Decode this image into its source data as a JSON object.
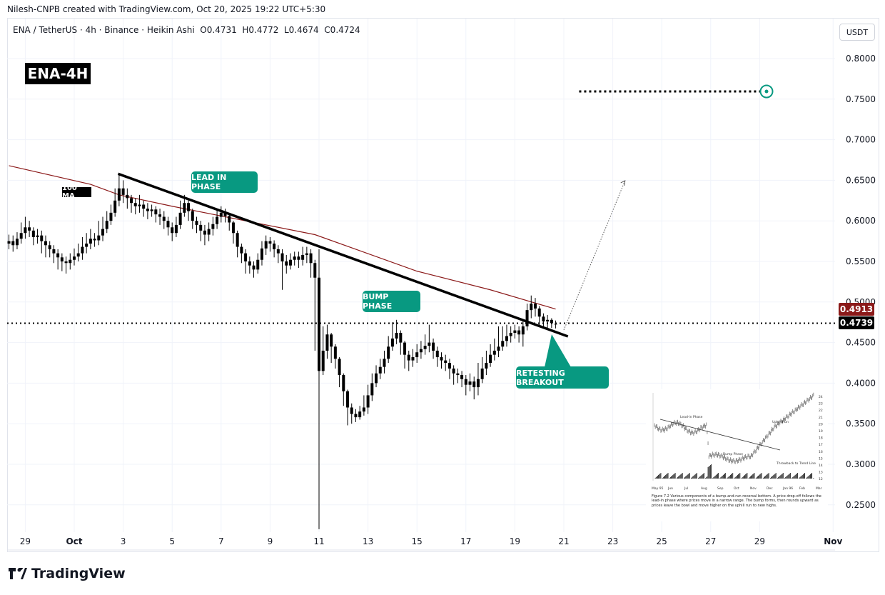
{
  "credit": "Nilesh-CNPB created with TradingView.com, Oct 20, 2025 19:22 UTC+5:30",
  "legend": {
    "symbol": "ENA / TetherUS",
    "interval": "4h",
    "exchange": "Binance",
    "chart_style": "Heikin Ashi",
    "open": "O0.4731",
    "high": "H0.4772",
    "low": "L0.4674",
    "close": "C0.4724",
    "text": "ENA / TetherUS · 4h · Binance · Heikin Ashi  O0.4731  H0.4772  L0.4674  C0.4724"
  },
  "currency_button": "USDT",
  "symbol_badge": "ENA-4H",
  "annotations": {
    "ma_label": "100 MA",
    "lead_in": "LEAD IN PHASE",
    "bump": "BUMP PHASE",
    "retest": "RETESTING BREAKOUT"
  },
  "price_labels": {
    "ma_value": "0.4913",
    "last_price": "0.4739"
  },
  "colors": {
    "accent": "#089981",
    "ma": "#8b1a1a",
    "candle": "#000000",
    "grid": "#f0f3fa"
  },
  "branding": "TradingView",
  "inset": {
    "caption": "Figure 7.2  Various components of a bump-and-run reversal bottom. A price drop-off follows the lead-in phase where prices move in a narrow range. The bump forms, then rounds upward as prices leave the bowl and move higher on the uphill run to new highs.",
    "labels": [
      "Lead-in Phase",
      "Bump Phase",
      "Uphill Run",
      "Throwback to Trend Line"
    ],
    "x_ticks": [
      "May 95",
      "Jun",
      "Jul",
      "Aug",
      "Sep",
      "Oct",
      "Nov",
      "Dec",
      "Jan 96",
      "Feb",
      "Mar"
    ],
    "y_ticks": [
      "24",
      "23",
      "22",
      "21",
      "20",
      "19",
      "18",
      "17",
      "16",
      "15",
      "14",
      "13",
      "12"
    ]
  },
  "chart_data": {
    "type": "candlestick",
    "title": "",
    "interval": "4h",
    "first_candle_time": "2025-09-28T08:00",
    "ylim": [
      0.22,
      0.82
    ],
    "y_ticks": [
      "0.8000",
      "0.7500",
      "0.7000",
      "0.6500",
      "0.6000",
      "0.5500",
      "0.5000",
      "0.4500",
      "0.4000",
      "0.3500",
      "0.3000",
      "0.2500"
    ],
    "x_ticks": [
      {
        "label": "29",
        "date": "2025-09-29"
      },
      {
        "label": "Oct",
        "date": "2025-10-01"
      },
      {
        "label": "3",
        "date": "2025-10-03"
      },
      {
        "label": "5",
        "date": "2025-10-05"
      },
      {
        "label": "7",
        "date": "2025-10-07"
      },
      {
        "label": "9",
        "date": "2025-10-09"
      },
      {
        "label": "11",
        "date": "2025-10-11"
      },
      {
        "label": "13",
        "date": "2025-10-13"
      },
      {
        "label": "15",
        "date": "2025-10-15"
      },
      {
        "label": "17",
        "date": "2025-10-17"
      },
      {
        "label": "19",
        "date": "2025-10-19"
      },
      {
        "label": "21",
        "date": "2025-10-21"
      },
      {
        "label": "23",
        "date": "2025-10-23"
      },
      {
        "label": "25",
        "date": "2025-10-25"
      },
      {
        "label": "27",
        "date": "2025-10-27"
      },
      {
        "label": "29",
        "date": "2025-10-29"
      },
      {
        "label": "Nov",
        "date": "2025-11-01"
      }
    ],
    "grid": true,
    "close": [
      0.575,
      0.57,
      0.578,
      0.585,
      0.592,
      0.588,
      0.58,
      0.582,
      0.575,
      0.57,
      0.565,
      0.56,
      0.555,
      0.55,
      0.548,
      0.552,
      0.556,
      0.56,
      0.568,
      0.572,
      0.578,
      0.576,
      0.582,
      0.59,
      0.6,
      0.61,
      0.625,
      0.64,
      0.632,
      0.628,
      0.622,
      0.618,
      0.62,
      0.615,
      0.612,
      0.614,
      0.608,
      0.605,
      0.6,
      0.592,
      0.585,
      0.595,
      0.61,
      0.622,
      0.612,
      0.6,
      0.595,
      0.588,
      0.583,
      0.59,
      0.596,
      0.605,
      0.61,
      0.606,
      0.598,
      0.585,
      0.568,
      0.56,
      0.55,
      0.545,
      0.54,
      0.552,
      0.566,
      0.575,
      0.572,
      0.565,
      0.56,
      0.55,
      0.545,
      0.552,
      0.556,
      0.552,
      0.558,
      0.56,
      0.548,
      0.53,
      0.415,
      0.44,
      0.46,
      0.445,
      0.43,
      0.41,
      0.39,
      0.37,
      0.362,
      0.358,
      0.365,
      0.37,
      0.385,
      0.4,
      0.412,
      0.42,
      0.43,
      0.445,
      0.455,
      0.462,
      0.45,
      0.435,
      0.428,
      0.432,
      0.438,
      0.442,
      0.446,
      0.45,
      0.44,
      0.432,
      0.428,
      0.425,
      0.418,
      0.412,
      0.41,
      0.405,
      0.398,
      0.402,
      0.395,
      0.405,
      0.418,
      0.425,
      0.435,
      0.44,
      0.445,
      0.452,
      0.458,
      0.462,
      0.465,
      0.46,
      0.47,
      0.49,
      0.498,
      0.492,
      0.482,
      0.476,
      0.478,
      0.474,
      0.4724
    ],
    "high": [
      0.583,
      0.582,
      0.586,
      0.598,
      0.605,
      0.6,
      0.592,
      0.59,
      0.588,
      0.582,
      0.575,
      0.57,
      0.565,
      0.56,
      0.556,
      0.56,
      0.566,
      0.572,
      0.58,
      0.585,
      0.59,
      0.585,
      0.6,
      0.605,
      0.612,
      0.62,
      0.64,
      0.657,
      0.65,
      0.64,
      0.632,
      0.628,
      0.632,
      0.625,
      0.622,
      0.62,
      0.618,
      0.615,
      0.612,
      0.605,
      0.598,
      0.605,
      0.625,
      0.632,
      0.625,
      0.615,
      0.605,
      0.6,
      0.595,
      0.598,
      0.605,
      0.615,
      0.618,
      0.615,
      0.608,
      0.6,
      0.588,
      0.572,
      0.565,
      0.556,
      0.55,
      0.56,
      0.575,
      0.582,
      0.58,
      0.576,
      0.57,
      0.565,
      0.558,
      0.56,
      0.562,
      0.562,
      0.568,
      0.568,
      0.565,
      0.552,
      0.565,
      0.47,
      0.472,
      0.462,
      0.448,
      0.432,
      0.412,
      0.392,
      0.375,
      0.368,
      0.372,
      0.385,
      0.398,
      0.412,
      0.422,
      0.43,
      0.44,
      0.458,
      0.475,
      0.478,
      0.465,
      0.452,
      0.44,
      0.442,
      0.448,
      0.452,
      0.46,
      0.472,
      0.455,
      0.445,
      0.438,
      0.435,
      0.43,
      0.422,
      0.418,
      0.415,
      0.41,
      0.412,
      0.408,
      0.425,
      0.432,
      0.44,
      0.448,
      0.455,
      0.47,
      0.47,
      0.472,
      0.47,
      0.472,
      0.47,
      0.478,
      0.498,
      0.508,
      0.505,
      0.495,
      0.486,
      0.484,
      0.48,
      0.4772
    ],
    "low": [
      0.565,
      0.562,
      0.565,
      0.572,
      0.578,
      0.58,
      0.57,
      0.572,
      0.56,
      0.555,
      0.555,
      0.548,
      0.54,
      0.538,
      0.535,
      0.54,
      0.545,
      0.55,
      0.552,
      0.56,
      0.565,
      0.568,
      0.57,
      0.575,
      0.585,
      0.595,
      0.605,
      0.618,
      0.622,
      0.615,
      0.61,
      0.608,
      0.61,
      0.605,
      0.602,
      0.605,
      0.598,
      0.595,
      0.59,
      0.582,
      0.575,
      0.58,
      0.59,
      0.605,
      0.6,
      0.59,
      0.585,
      0.575,
      0.57,
      0.575,
      0.582,
      0.59,
      0.598,
      0.598,
      0.588,
      0.572,
      0.555,
      0.548,
      0.535,
      0.535,
      0.53,
      0.535,
      0.545,
      0.558,
      0.562,
      0.555,
      0.548,
      0.515,
      0.535,
      0.54,
      0.545,
      0.542,
      0.545,
      0.548,
      0.53,
      0.44,
      0.22,
      0.41,
      0.43,
      0.425,
      0.418,
      0.395,
      0.372,
      0.348,
      0.35,
      0.352,
      0.355,
      0.36,
      0.362,
      0.378,
      0.395,
      0.405,
      0.412,
      0.425,
      0.44,
      0.448,
      0.435,
      0.418,
      0.415,
      0.42,
      0.425,
      0.43,
      0.435,
      0.438,
      0.43,
      0.42,
      0.418,
      0.415,
      0.405,
      0.398,
      0.4,
      0.395,
      0.385,
      0.39,
      0.38,
      0.385,
      0.4,
      0.41,
      0.42,
      0.428,
      0.432,
      0.44,
      0.445,
      0.45,
      0.455,
      0.45,
      0.445,
      0.465,
      0.48,
      0.482,
      0.47,
      0.468,
      0.468,
      0.468,
      0.4674
    ],
    "first_open": 0.572,
    "last_open": 0.4731,
    "moving_average": {
      "name": "100 MA",
      "points": [
        [
          "2025-09-28T08:00",
          0.668
        ],
        [
          "2025-10-01T16:00",
          0.645
        ],
        [
          "2025-10-02T20:00",
          0.632
        ],
        [
          "2025-10-05T00:00",
          0.618
        ],
        [
          "2025-10-08T08:00",
          0.598
        ],
        [
          "2025-10-10T20:00",
          0.583
        ],
        [
          "2025-10-12T12:00",
          0.565
        ],
        [
          "2025-10-15T00:00",
          0.538
        ],
        [
          "2025-10-18T00:00",
          0.515
        ],
        [
          "2025-10-20T16:00",
          0.4913
        ]
      ]
    },
    "trendline": [
      [
        "2025-10-02T19:00",
        0.658
      ],
      [
        "2025-10-21T04:00",
        0.4576
      ]
    ],
    "projection": [
      [
        "2025-10-21T00:00",
        0.4655
      ],
      [
        "2025-10-23T12:00",
        0.6495
      ]
    ],
    "target": {
      "price": 0.7595,
      "from": "2025-10-21T15:00",
      "to": "2025-10-29T00:30"
    },
    "last_price": 0.4739,
    "ma_last": 0.4913
  }
}
